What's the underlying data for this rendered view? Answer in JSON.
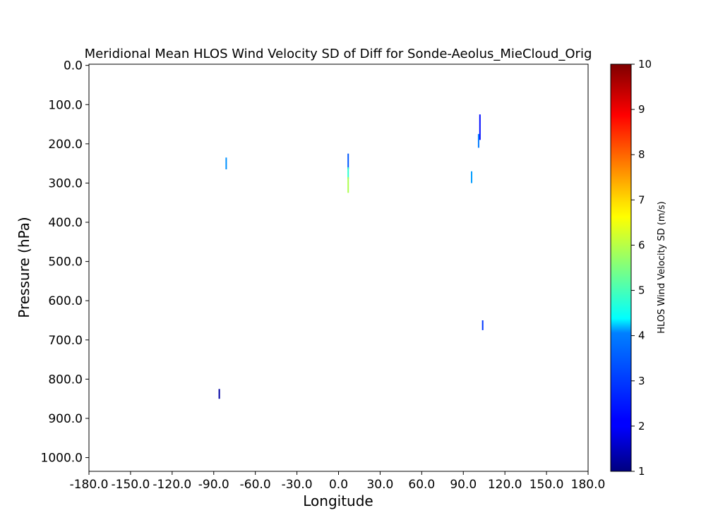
{
  "chart_data": {
    "type": "heatmap",
    "title": "Meridional Mean HLOS Wind Velocity SD of Diff for Sonde-Aeolus_MieCloud_Orig",
    "xlabel": "Longitude",
    "ylabel": "Pressure (hPa)",
    "xlim": [
      -180,
      180
    ],
    "ylim": [
      1035,
      -3
    ],
    "y_inverted": true,
    "x_ticks": [
      "-180.0",
      "-150.0",
      "-120.0",
      "-90.0",
      "-60.0",
      "-30.0",
      "0.0",
      "30.0",
      "60.0",
      "90.0",
      "120.0",
      "150.0",
      "180.0"
    ],
    "y_ticks": [
      "0.0",
      "100.0",
      "200.0",
      "300.0",
      "400.0",
      "500.0",
      "600.0",
      "700.0",
      "800.0",
      "900.0",
      "1000.0"
    ],
    "grid": false,
    "colormap": "jet",
    "colorbar": {
      "label": "HLOS Wind Velocity SD (m/s)",
      "min": 1,
      "max": 10,
      "ticks": [
        "1",
        "2",
        "3",
        "4",
        "5",
        "6",
        "7",
        "8",
        "9",
        "10"
      ]
    },
    "cells": [
      {
        "lon": 102,
        "p_top": 125,
        "p_bottom": 190,
        "value": 2.2
      },
      {
        "lon": 101,
        "p_top": 175,
        "p_bottom": 210,
        "value": 3.2
      },
      {
        "lon": -81,
        "p_top": 235,
        "p_bottom": 265,
        "value": 3.4
      },
      {
        "lon": 7,
        "p_top": 225,
        "p_bottom": 265,
        "value": 2.9
      },
      {
        "lon": 7,
        "p_top": 260,
        "p_bottom": 290,
        "value": 4.8
      },
      {
        "lon": 7,
        "p_top": 285,
        "p_bottom": 325,
        "value": 5.9
      },
      {
        "lon": 96,
        "p_top": 270,
        "p_bottom": 300,
        "value": 3.5
      },
      {
        "lon": 104,
        "p_top": 650,
        "p_bottom": 675,
        "value": 2.6
      },
      {
        "lon": -86,
        "p_top": 825,
        "p_bottom": 850,
        "value": 1.3
      }
    ]
  }
}
